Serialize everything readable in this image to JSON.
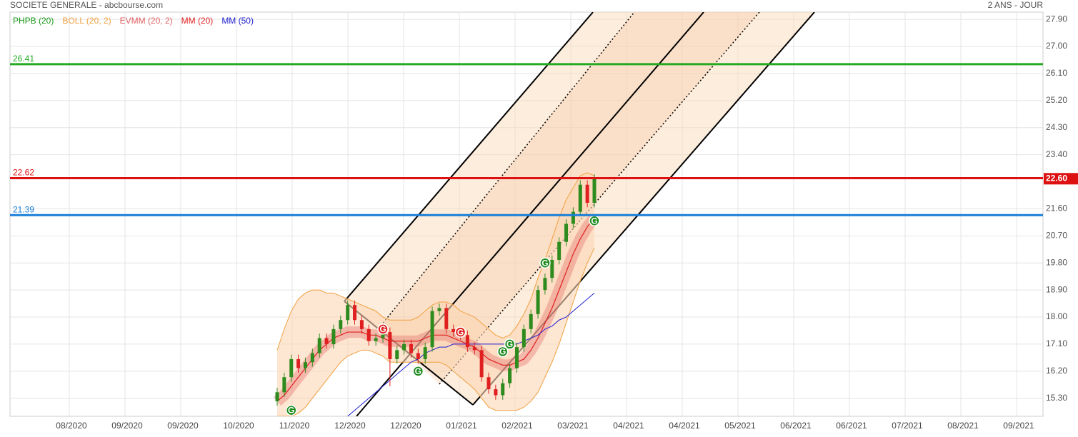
{
  "header": {
    "title": "SOCIETE GENERALE - abcbourse.com",
    "period": "2 ANS - JOUR"
  },
  "chart_data": {
    "type": "candlestick",
    "grid": true,
    "legend": [
      {
        "name": "PHPB (20)",
        "color": "#1a9a1a"
      },
      {
        "name": "BOLL (20, 2)",
        "color": "#f0a040"
      },
      {
        "name": "EVMM (20, 2)",
        "color": "#e06060"
      },
      {
        "name": "MM (20)",
        "color": "#e02020"
      },
      {
        "name": "MM (50)",
        "color": "#2020d0"
      }
    ],
    "categories": [
      "08/2020",
      "09/2020",
      "09/2020",
      "10/2020",
      "11/2020",
      "12/2020",
      "12/2020",
      "01/2021",
      "02/2021",
      "03/2021",
      "04/2021",
      "04/2021",
      "05/2021",
      "06/2021",
      "06/2021",
      "07/2021",
      "08/2021",
      "09/2021"
    ],
    "ylim": [
      14.7,
      28.14
    ],
    "yticks": [
      {
        "value": 15.3,
        "label": "15.30"
      },
      {
        "value": 16.2,
        "label": "16.20"
      },
      {
        "value": 17.1,
        "label": "17.10"
      },
      {
        "value": 18.0,
        "label": "18.00"
      },
      {
        "value": 18.9,
        "label": "18.90"
      },
      {
        "value": 19.8,
        "label": "19.80"
      },
      {
        "value": 20.7,
        "label": "20.70"
      },
      {
        "value": 21.6,
        "label": "21.60"
      },
      {
        "value": 23.4,
        "label": "23.40"
      },
      {
        "value": 24.3,
        "label": "24.30"
      },
      {
        "value": 25.2,
        "label": "25.20"
      },
      {
        "value": 26.1,
        "label": "26.10"
      },
      {
        "value": 27.0,
        "label": "27.00"
      },
      {
        "value": 27.9,
        "label": "27.90"
      }
    ],
    "up_color": "#2e8b1e",
    "down_color": "#e02020",
    "open": [
      15.2,
      15.5,
      16.0,
      16.6,
      16.3,
      16.5,
      16.8,
      17.3,
      17.1,
      17.6,
      17.9,
      18.4,
      17.9,
      17.6,
      17.2,
      17.3,
      17.5,
      16.6,
      16.9,
      17.1,
      16.8,
      16.6,
      17.0,
      18.2,
      18.3,
      17.6,
      17.5,
      17.4,
      17.0,
      16.9,
      16.0,
      15.6,
      15.4,
      15.8,
      16.3,
      17.0,
      17.6,
      18.1,
      18.9,
      19.3,
      19.9,
      20.5,
      21.1,
      21.5,
      22.4,
      21.8
    ],
    "high": [
      15.65,
      16.15,
      16.75,
      16.75,
      16.65,
      16.95,
      17.45,
      17.45,
      17.75,
      18.05,
      18.55,
      18.55,
      18.05,
      17.75,
      17.45,
      17.65,
      17.65,
      17.05,
      17.25,
      17.25,
      16.95,
      17.15,
      18.35,
      18.45,
      18.45,
      17.75,
      17.65,
      17.55,
      17.15,
      17.05,
      16.15,
      15.75,
      15.95,
      16.45,
      17.15,
      17.75,
      18.25,
      19.05,
      19.45,
      20.05,
      20.65,
      21.25,
      21.65,
      22.55,
      22.55,
      22.75
    ],
    "low": [
      15.05,
      15.35,
      15.85,
      16.15,
      16.15,
      16.35,
      16.65,
      16.95,
      16.95,
      17.45,
      17.75,
      17.75,
      17.45,
      17.05,
      17.05,
      17.15,
      15.7,
      16.45,
      16.75,
      16.65,
      16.45,
      16.45,
      16.85,
      18.05,
      17.45,
      17.35,
      17.25,
      16.85,
      16.75,
      15.85,
      15.45,
      15.25,
      15.25,
      15.65,
      16.15,
      16.85,
      17.45,
      17.95,
      18.75,
      19.15,
      19.75,
      20.35,
      20.95,
      21.35,
      21.65,
      21.65
    ],
    "close": [
      15.5,
      16.0,
      16.6,
      16.3,
      16.5,
      16.8,
      17.3,
      17.1,
      17.6,
      17.9,
      18.4,
      17.9,
      17.6,
      17.2,
      17.3,
      17.5,
      16.6,
      16.9,
      17.1,
      16.8,
      16.6,
      17.0,
      18.2,
      18.3,
      17.6,
      17.5,
      17.4,
      17.0,
      16.9,
      16.0,
      15.6,
      15.4,
      15.8,
      16.3,
      17.0,
      17.6,
      18.1,
      18.9,
      19.3,
      19.9,
      20.5,
      21.1,
      21.5,
      22.4,
      21.8,
      22.6
    ],
    "boll_upper": [
      16.9,
      17.6,
      18.2,
      18.6,
      18.8,
      18.9,
      18.9,
      18.8,
      18.8,
      18.7,
      18.6,
      18.5,
      18.4,
      18.3,
      18.2,
      18.0,
      17.9,
      17.9,
      17.9,
      17.9,
      18.0,
      18.2,
      18.4,
      18.5,
      18.5,
      18.4,
      18.2,
      18.1,
      18.0,
      17.8,
      17.6,
      17.4,
      17.3,
      17.4,
      17.7,
      18.1,
      18.6,
      19.3,
      19.9,
      20.6,
      21.3,
      21.9,
      22.3,
      22.7,
      22.8,
      22.7
    ],
    "boll_lower": [
      14.7,
      14.7,
      14.7,
      14.8,
      15.0,
      15.3,
      15.6,
      15.9,
      16.2,
      16.5,
      16.7,
      16.8,
      16.9,
      16.9,
      16.8,
      16.7,
      16.5,
      16.5,
      16.5,
      16.5,
      16.5,
      16.5,
      16.5,
      16.5,
      16.4,
      16.2,
      16.0,
      15.8,
      15.6,
      15.3,
      15.0,
      14.9,
      14.9,
      14.9,
      14.9,
      15.0,
      15.2,
      15.5,
      16.0,
      16.5,
      17.1,
      17.8,
      18.5,
      19.2,
      19.8,
      20.3
    ],
    "evmm": [
      15.2,
      15.4,
      15.7,
      16.0,
      16.3,
      16.6,
      16.9,
      17.1,
      17.3,
      17.4,
      17.5,
      17.5,
      17.5,
      17.4,
      17.4,
      17.3,
      17.2,
      17.2,
      17.2,
      17.2,
      17.2,
      17.3,
      17.4,
      17.4,
      17.4,
      17.3,
      17.2,
      17.1,
      17.0,
      16.8,
      16.6,
      16.5,
      16.4,
      16.4,
      16.5,
      16.6,
      16.9,
      17.3,
      17.8,
      18.3,
      18.9,
      19.5,
      20.1,
      20.6,
      21.0,
      21.3
    ],
    "mm20": [
      15.2,
      15.4,
      15.7,
      16.0,
      16.3,
      16.6,
      16.9,
      17.1,
      17.3,
      17.4,
      17.5,
      17.5,
      17.5,
      17.4,
      17.4,
      17.3,
      17.2,
      17.2,
      17.2,
      17.2,
      17.2,
      17.3,
      17.4,
      17.4,
      17.4,
      17.3,
      17.2,
      17.1,
      17.0,
      16.8,
      16.6,
      16.5,
      16.4,
      16.4,
      16.5,
      16.6,
      16.9,
      17.3,
      17.8,
      18.3,
      18.9,
      19.5,
      20.1,
      20.6,
      21.0,
      21.3
    ],
    "mm50": [
      null,
      null,
      null,
      null,
      null,
      null,
      null,
      null,
      null,
      null,
      14.7,
      14.9,
      15.1,
      15.3,
      15.5,
      15.7,
      15.9,
      16.1,
      16.3,
      16.5,
      16.6,
      16.8,
      16.9,
      17.0,
      17.0,
      17.1,
      17.1,
      17.1,
      17.1,
      17.1,
      17.1,
      17.1,
      17.1,
      17.1,
      17.1,
      17.2,
      17.3,
      17.4,
      17.6,
      17.7,
      17.9,
      18.0,
      18.2,
      18.4,
      18.6,
      18.8
    ],
    "signals": [
      {
        "x": 2,
        "y": 14.9,
        "label": "G",
        "color": "#1a8a1a"
      },
      {
        "x": 15,
        "y": 17.6,
        "label": "G",
        "color": "#e02020"
      },
      {
        "x": 20,
        "y": 16.2,
        "label": "G",
        "color": "#1a8a1a"
      },
      {
        "x": 26,
        "y": 17.5,
        "label": "G",
        "color": "#e02020"
      },
      {
        "x": 32,
        "y": 16.85,
        "label": "G",
        "color": "#1a8a1a"
      },
      {
        "x": 33,
        "y": 17.1,
        "label": "G",
        "color": "#1a8a1a"
      },
      {
        "x": 38,
        "y": 19.8,
        "label": "G",
        "color": "#1a8a1a"
      },
      {
        "x": 45,
        "y": 21.2,
        "label": "G",
        "color": "#1a8a1a"
      }
    ],
    "levels": [
      {
        "value": 26.41,
        "color": "#22aa22"
      },
      {
        "value": 22.62,
        "color": "#dd1111"
      },
      {
        "value": 21.39,
        "color": "#1a7fd8"
      }
    ],
    "last_price": {
      "value": 22.6,
      "label": "22.60"
    }
  }
}
